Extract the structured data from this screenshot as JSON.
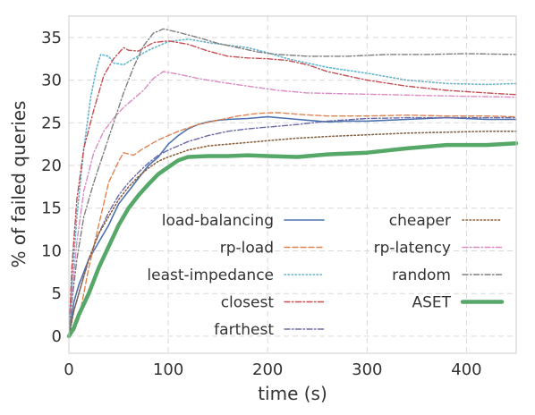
{
  "chart_data": {
    "type": "line",
    "xlabel": "time (s)",
    "ylabel": "% of failed queries",
    "xlim": [
      0,
      450
    ],
    "ylim": [
      -2,
      37.5
    ],
    "xticks": [
      0,
      100,
      200,
      300,
      400
    ],
    "yticks": [
      0,
      5,
      10,
      15,
      20,
      25,
      30,
      35
    ],
    "grid": true,
    "legend_position": "lower-right",
    "series": [
      {
        "name": "load-balancing",
        "color": "#4c72b0",
        "style": "solid",
        "points": [
          [
            0,
            0
          ],
          [
            5,
            4
          ],
          [
            10,
            6
          ],
          [
            20,
            9
          ],
          [
            30,
            11
          ],
          [
            40,
            13
          ],
          [
            50,
            15.5
          ],
          [
            60,
            17
          ],
          [
            70,
            18.5
          ],
          [
            80,
            20
          ],
          [
            90,
            21
          ],
          [
            100,
            22.5
          ],
          [
            110,
            23.5
          ],
          [
            120,
            24.3
          ],
          [
            130,
            24.8
          ],
          [
            140,
            25.1
          ],
          [
            150,
            25.3
          ],
          [
            160,
            25.4
          ],
          [
            180,
            25.5
          ],
          [
            200,
            25.7
          ],
          [
            220,
            25.5
          ],
          [
            240,
            25.3
          ],
          [
            260,
            25.1
          ],
          [
            280,
            25.2
          ],
          [
            300,
            25.2
          ],
          [
            320,
            25.3
          ],
          [
            340,
            25.4
          ],
          [
            360,
            25.5
          ],
          [
            380,
            25.6
          ],
          [
            400,
            25.5
          ],
          [
            420,
            25.4
          ],
          [
            450,
            25.4
          ]
        ]
      },
      {
        "name": "rp-load",
        "color": "#dd8452",
        "style": "dashed",
        "points": [
          [
            0,
            0
          ],
          [
            5,
            0.5
          ],
          [
            10,
            2
          ],
          [
            20,
            8
          ],
          [
            30,
            13
          ],
          [
            35,
            15.5
          ],
          [
            40,
            18
          ],
          [
            50,
            20.5
          ],
          [
            55,
            21.5
          ],
          [
            65,
            21.2
          ],
          [
            75,
            22
          ],
          [
            90,
            23
          ],
          [
            110,
            24
          ],
          [
            130,
            24.8
          ],
          [
            150,
            25.3
          ],
          [
            170,
            25.8
          ],
          [
            190,
            26.1
          ],
          [
            210,
            26.2
          ],
          [
            230,
            26.0
          ],
          [
            260,
            25.8
          ],
          [
            300,
            25.8
          ],
          [
            340,
            25.9
          ],
          [
            380,
            25.8
          ],
          [
            420,
            25.8
          ],
          [
            450,
            25.7
          ]
        ]
      },
      {
        "name": "least-impedance",
        "color": "#64b5cd",
        "style": "dotted",
        "points": [
          [
            0,
            0
          ],
          [
            3,
            6
          ],
          [
            8,
            14
          ],
          [
            15,
            22
          ],
          [
            22,
            28
          ],
          [
            28,
            31.5
          ],
          [
            32,
            33
          ],
          [
            40,
            32.8
          ],
          [
            45,
            32
          ],
          [
            55,
            31.8
          ],
          [
            65,
            32.5
          ],
          [
            80,
            33.5
          ],
          [
            100,
            34.5
          ],
          [
            120,
            34.8
          ],
          [
            140,
            34.4
          ],
          [
            160,
            34.1
          ],
          [
            180,
            33.8
          ],
          [
            200,
            33.2
          ],
          [
            220,
            32.5
          ],
          [
            260,
            31.5
          ],
          [
            300,
            30.8
          ],
          [
            340,
            30
          ],
          [
            380,
            29.6
          ],
          [
            420,
            29.5
          ],
          [
            450,
            29.6
          ]
        ]
      },
      {
        "name": "closest",
        "color": "#c44e52",
        "style": "dashdot",
        "points": [
          [
            0,
            0
          ],
          [
            3,
            8
          ],
          [
            8,
            16
          ],
          [
            15,
            22
          ],
          [
            25,
            26.5
          ],
          [
            35,
            30.5
          ],
          [
            45,
            32.5
          ],
          [
            55,
            33.8
          ],
          [
            60,
            33.5
          ],
          [
            70,
            33.4
          ],
          [
            85,
            34.4
          ],
          [
            100,
            34.6
          ],
          [
            120,
            34.2
          ],
          [
            140,
            33.4
          ],
          [
            160,
            32.8
          ],
          [
            180,
            32.6
          ],
          [
            200,
            32.5
          ],
          [
            220,
            32.3
          ],
          [
            240,
            31.8
          ],
          [
            260,
            31
          ],
          [
            300,
            30
          ],
          [
            340,
            29.3
          ],
          [
            380,
            28.8
          ],
          [
            420,
            28.5
          ],
          [
            450,
            28.3
          ]
        ]
      },
      {
        "name": "farthest",
        "color": "#6a6aa8",
        "style": "dashdot",
        "points": [
          [
            0,
            0
          ],
          [
            5,
            3
          ],
          [
            10,
            5
          ],
          [
            20,
            9
          ],
          [
            30,
            12
          ],
          [
            40,
            14.5
          ],
          [
            50,
            16.5
          ],
          [
            60,
            18
          ],
          [
            70,
            19.2
          ],
          [
            80,
            20.3
          ],
          [
            90,
            21.2
          ],
          [
            100,
            21.8
          ],
          [
            120,
            22.8
          ],
          [
            140,
            23.5
          ],
          [
            160,
            24
          ],
          [
            180,
            24.3
          ],
          [
            200,
            24.5
          ],
          [
            230,
            24.8
          ],
          [
            260,
            25.2
          ],
          [
            300,
            25.5
          ],
          [
            340,
            25.6
          ],
          [
            380,
            25.6
          ],
          [
            420,
            25.6
          ],
          [
            450,
            25.6
          ]
        ]
      },
      {
        "name": "cheaper",
        "color": "#8c613c",
        "style": "dotted",
        "points": [
          [
            0,
            0
          ],
          [
            5,
            3
          ],
          [
            10,
            5
          ],
          [
            20,
            9
          ],
          [
            30,
            12
          ],
          [
            40,
            14
          ],
          [
            50,
            16
          ],
          [
            60,
            17.5
          ],
          [
            70,
            18.7
          ],
          [
            80,
            19.7
          ],
          [
            90,
            20.5
          ],
          [
            100,
            21
          ],
          [
            120,
            21.8
          ],
          [
            140,
            22.3
          ],
          [
            160,
            22.5
          ],
          [
            180,
            22.7
          ],
          [
            200,
            22.9
          ],
          [
            230,
            23.2
          ],
          [
            260,
            23.4
          ],
          [
            300,
            23.6
          ],
          [
            340,
            23.8
          ],
          [
            380,
            23.9
          ],
          [
            420,
            24
          ],
          [
            450,
            24
          ]
        ]
      },
      {
        "name": "rp-latency",
        "color": "#da8bc3",
        "style": "dashdot",
        "points": [
          [
            0,
            0
          ],
          [
            3,
            5
          ],
          [
            8,
            11
          ],
          [
            15,
            17
          ],
          [
            25,
            21.5
          ],
          [
            35,
            24
          ],
          [
            45,
            25.5
          ],
          [
            55,
            26.8
          ],
          [
            65,
            27.8
          ],
          [
            75,
            28.8
          ],
          [
            85,
            30.2
          ],
          [
            95,
            31
          ],
          [
            110,
            30.7
          ],
          [
            130,
            30.2
          ],
          [
            150,
            29.8
          ],
          [
            180,
            29.3
          ],
          [
            210,
            28.8
          ],
          [
            240,
            28.5
          ],
          [
            280,
            28.4
          ],
          [
            320,
            28.3
          ],
          [
            360,
            28.2
          ],
          [
            400,
            28.1
          ],
          [
            450,
            28
          ]
        ]
      },
      {
        "name": "random",
        "color": "#7f7f7f",
        "style": "dashdot",
        "points": [
          [
            0,
            0
          ],
          [
            3,
            4
          ],
          [
            8,
            9
          ],
          [
            15,
            14
          ],
          [
            25,
            18
          ],
          [
            35,
            21.5
          ],
          [
            45,
            25
          ],
          [
            55,
            28.5
          ],
          [
            65,
            31.5
          ],
          [
            75,
            34
          ],
          [
            85,
            35.5
          ],
          [
            95,
            36
          ],
          [
            110,
            35.6
          ],
          [
            130,
            35
          ],
          [
            150,
            34.3
          ],
          [
            170,
            33.8
          ],
          [
            190,
            33.3
          ],
          [
            210,
            33
          ],
          [
            240,
            32.8
          ],
          [
            280,
            32.8
          ],
          [
            320,
            33
          ],
          [
            360,
            33
          ],
          [
            400,
            33.1
          ],
          [
            450,
            33
          ]
        ]
      },
      {
        "name": "ASET",
        "color": "#55a868",
        "style": "thick",
        "points": [
          [
            0,
            0
          ],
          [
            5,
            1
          ],
          [
            10,
            2.5
          ],
          [
            20,
            5
          ],
          [
            30,
            8
          ],
          [
            40,
            10.5
          ],
          [
            50,
            13
          ],
          [
            60,
            15
          ],
          [
            70,
            16.5
          ],
          [
            80,
            17.8
          ],
          [
            90,
            19
          ],
          [
            100,
            19.8
          ],
          [
            110,
            20.6
          ],
          [
            120,
            21
          ],
          [
            140,
            21.1
          ],
          [
            160,
            21.1
          ],
          [
            180,
            21.2
          ],
          [
            200,
            21.1
          ],
          [
            230,
            21
          ],
          [
            260,
            21.3
          ],
          [
            300,
            21.5
          ],
          [
            340,
            22
          ],
          [
            380,
            22.4
          ],
          [
            420,
            22.4
          ],
          [
            450,
            22.6
          ]
        ]
      }
    ]
  }
}
